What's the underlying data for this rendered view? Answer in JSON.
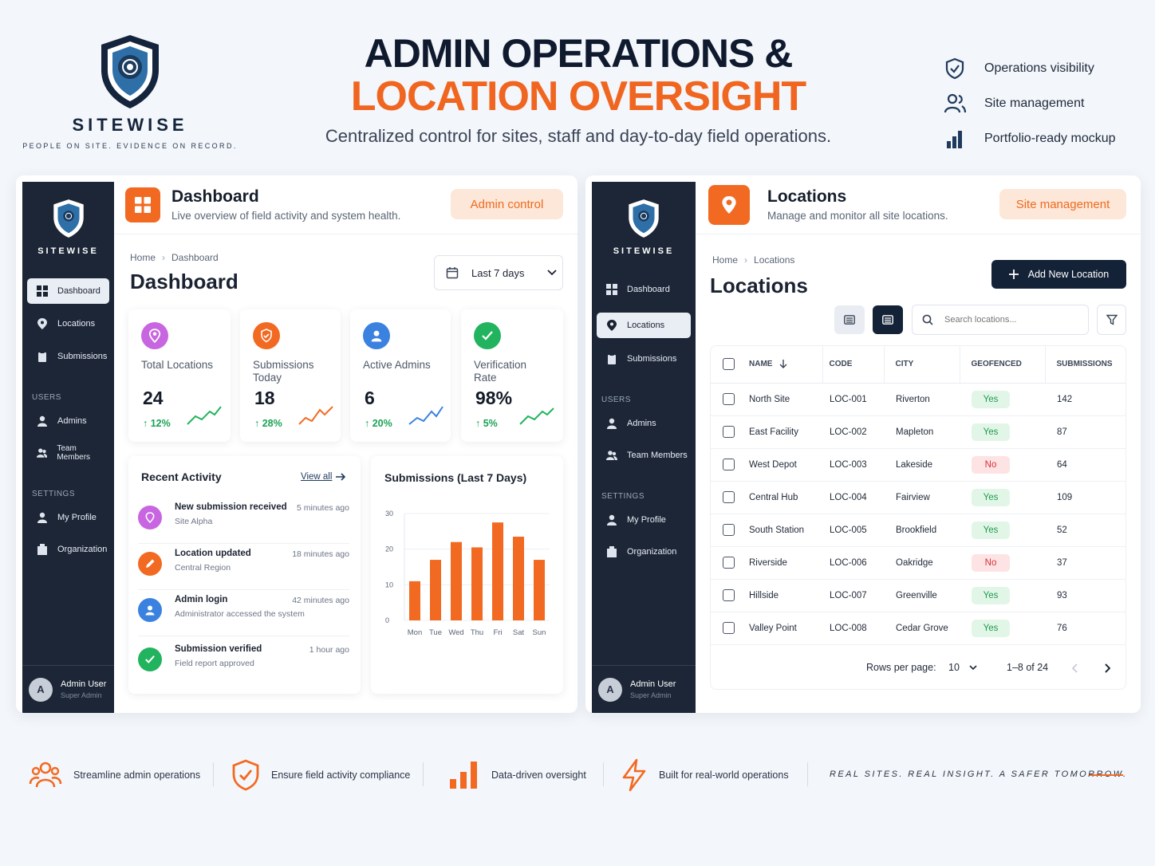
{
  "brand": {
    "name": "SITEWISE",
    "tagline": "PEOPLE ON SITE. EVIDENCE ON RECORD."
  },
  "hero": {
    "line1": "ADMIN OPERATIONS &",
    "line2": "LOCATION OVERSIGHT",
    "subtitle": "Centralized control for sites, staff and day-to-day field operations."
  },
  "features": [
    "Operations visibility",
    "Site management",
    "Portfolio-ready mockup"
  ],
  "colors": {
    "accent": "#f26a22",
    "navy": "#1c2636",
    "success": "#1aa255",
    "danger": "#d6333a"
  },
  "sidebar": {
    "main": [
      "Dashboard",
      "Locations",
      "Submissions"
    ],
    "users_label": "USERS",
    "users": [
      "Admins",
      "Team Members"
    ],
    "settings_label": "SETTINGS",
    "settings": [
      "My Profile",
      "Organization"
    ],
    "user": {
      "initial": "A",
      "name": "Admin User",
      "role": "Super Admin"
    }
  },
  "dashboard": {
    "title": "Dashboard",
    "subtitle": "Live overview of field activity and system health.",
    "pill": "Admin control",
    "crumbs": [
      "Home",
      "Dashboard"
    ],
    "heading": "Dashboard",
    "range": "Last 7 days",
    "stats": [
      {
        "label": "Total Locations",
        "value": "24",
        "change": "↑ 12%",
        "icon": "location-pin-icon",
        "color": "#c865e0"
      },
      {
        "label": "Submissions Today",
        "value": "18",
        "change": "↑ 28%",
        "icon": "shield-icon",
        "color": "#f26a22"
      },
      {
        "label": "Active Admins",
        "value": "6",
        "change": "↑ 20%",
        "icon": "user-icon",
        "color": "#3b82e0"
      },
      {
        "label": "Verification Rate",
        "value": "98%",
        "change": "↑ 5%",
        "icon": "check-icon",
        "color": "#22b35e"
      }
    ],
    "activity": {
      "title": "Recent Activity",
      "view_all": "View all",
      "items": [
        {
          "title": "New submission received",
          "sub": "Site Alpha",
          "time": "5 minutes ago",
          "color": "#c865e0"
        },
        {
          "title": "Location updated",
          "sub": "Central Region",
          "time": "18 minutes ago",
          "color": "#f26a22"
        },
        {
          "title": "Admin login",
          "sub": "Administrator accessed the system",
          "time": "42 minutes ago",
          "color": "#3b82e0"
        },
        {
          "title": "Submission verified",
          "sub": "Field report approved",
          "time": "1 hour ago",
          "color": "#22b35e"
        }
      ]
    }
  },
  "chart_data": {
    "type": "bar",
    "title": "Submissions (Last 7 Days)",
    "categories": [
      "Mon",
      "Tue",
      "Wed",
      "Thu",
      "Fri",
      "Sat",
      "Sun"
    ],
    "values": [
      11,
      17,
      22,
      20.5,
      27.5,
      23.5,
      17
    ],
    "ylim": [
      0,
      30
    ],
    "yticks": [
      0,
      10,
      20,
      30
    ],
    "grid": true
  },
  "locations": {
    "title": "Locations",
    "subtitle": "Manage and monitor all site locations.",
    "pill": "Site management",
    "crumbs": [
      "Home",
      "Locations"
    ],
    "heading": "Locations",
    "add_button": "Add New Location",
    "search_placeholder": "Search locations...",
    "columns": [
      "NAME",
      "CODE",
      "CITY",
      "GEOFENCED",
      "SUBMISSIONS"
    ],
    "rows": [
      [
        "North Site",
        "LOC-001",
        "Riverton",
        "Yes",
        "142"
      ],
      [
        "East Facility",
        "LOC-002",
        "Mapleton",
        "Yes",
        "87"
      ],
      [
        "West Depot",
        "LOC-003",
        "Lakeside",
        "No",
        "64"
      ],
      [
        "Central Hub",
        "LOC-004",
        "Fairview",
        "Yes",
        "109"
      ],
      [
        "South Station",
        "LOC-005",
        "Brookfield",
        "Yes",
        "52"
      ],
      [
        "Riverside",
        "LOC-006",
        "Oakridge",
        "No",
        "37"
      ],
      [
        "Hillside",
        "LOC-007",
        "Greenville",
        "Yes",
        "93"
      ],
      [
        "Valley Point",
        "LOC-008",
        "Cedar Grove",
        "Yes",
        "76"
      ]
    ],
    "pagination": {
      "rows_label": "Rows per page:",
      "rows_value": "10",
      "range": "1–8 of 24"
    }
  },
  "footer": {
    "items": [
      "Streamline admin operations",
      "Ensure field activity compliance",
      "Data-driven oversight",
      "Built for real-world operations"
    ],
    "tagline": "REAL SITES. REAL INSIGHT. A SAFER TOMORROW."
  }
}
